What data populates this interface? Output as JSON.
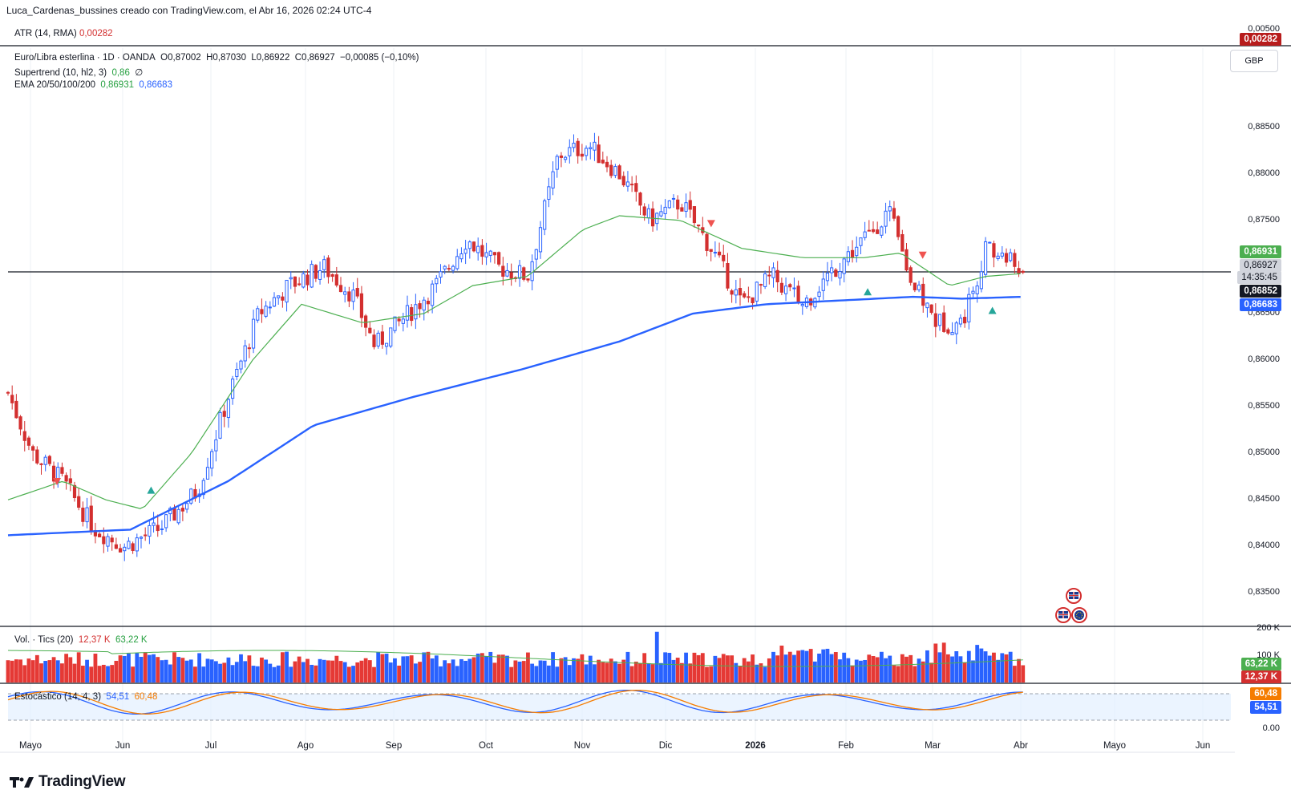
{
  "header": {
    "title": "Luca_Cardenas_bussines creado con TradingView.com, el Abr 16, 2026 02:24 UTC-4"
  },
  "atr": {
    "label": "ATR (14, RMA)",
    "value": "0,00282",
    "axis_top": "0,00500",
    "tag": "0,00282"
  },
  "instrument": {
    "name": "Euro/Libra esterlina · 1D · OANDA",
    "o": "0,87002",
    "h": "0,87030",
    "l": "0,86922",
    "c": "0,86927",
    "change": "−0,00085 (−0,10%)"
  },
  "supertrend": {
    "label": "Supertrend (10, hl2, 3)",
    "value": "0,86",
    "extra": "∅"
  },
  "ema": {
    "label": "EMA 20/50/100/200",
    "v1": "0,86931",
    "v2": "0,86683"
  },
  "currency_button": "GBP",
  "price_tags": {
    "ema_green": "0,86931",
    "last": "0,86927",
    "countdown": "14:35:45",
    "line": "0,86852",
    "ema_blue": "0,86683"
  },
  "volume": {
    "label": "Vol. · Tics (20)",
    "v1": "12,37 K",
    "v2": "63,22 K",
    "axis_top": "200 K",
    "axis_mid": "100 K",
    "tag1": "63,22 K",
    "tag2": "12,37 K"
  },
  "stoch": {
    "label": "Estocástico (14, 4, 3)",
    "v1": "54,51",
    "v2": "60,48",
    "axis_zero": "0.00",
    "tag1": "60,48",
    "tag2": "54,51"
  },
  "colors": {
    "up": "#2962ff",
    "down": "#d32f2f",
    "ema20": "#4caf50",
    "ema200": "#2962ff",
    "stoch_k": "#2962ff",
    "stoch_d": "#f57c00"
  },
  "brand": "TradingView",
  "chart_data": {
    "type": "line",
    "y_ticks": [
      "0,83500",
      "0,84000",
      "0,84500",
      "0,85000",
      "0,85500",
      "0,86000",
      "0,86500",
      "0,87000",
      "0,87500",
      "0,88000",
      "0,88500"
    ],
    "ylim": [
      0.8315,
      0.8935
    ],
    "x_ticks": [
      "Mayo",
      "Jun",
      "Jul",
      "Ago",
      "Sep",
      "Oct",
      "Nov",
      "Dic",
      "2026",
      "Feb",
      "Mar",
      "Abr",
      "Mayo",
      "Jun"
    ],
    "anchors_close": [
      {
        "x": 0.0,
        "y": 0.8565
      },
      {
        "x": 0.02,
        "y": 0.85
      },
      {
        "x": 0.045,
        "y": 0.847
      },
      {
        "x": 0.07,
        "y": 0.842
      },
      {
        "x": 0.095,
        "y": 0.84
      },
      {
        "x": 0.125,
        "y": 0.842
      },
      {
        "x": 0.155,
        "y": 0.846
      },
      {
        "x": 0.18,
        "y": 0.856
      },
      {
        "x": 0.205,
        "y": 0.865
      },
      {
        "x": 0.23,
        "y": 0.868
      },
      {
        "x": 0.258,
        "y": 0.87
      },
      {
        "x": 0.282,
        "y": 0.867
      },
      {
        "x": 0.3,
        "y": 0.8615
      },
      {
        "x": 0.32,
        "y": 0.864
      },
      {
        "x": 0.35,
        "y": 0.868
      },
      {
        "x": 0.375,
        "y": 0.873
      },
      {
        "x": 0.4,
        "y": 0.87
      },
      {
        "x": 0.425,
        "y": 0.869
      },
      {
        "x": 0.45,
        "y": 0.882
      },
      {
        "x": 0.475,
        "y": 0.883
      },
      {
        "x": 0.5,
        "y": 0.88
      },
      {
        "x": 0.525,
        "y": 0.875
      },
      {
        "x": 0.55,
        "y": 0.877
      },
      {
        "x": 0.575,
        "y": 0.872
      },
      {
        "x": 0.6,
        "y": 0.866
      },
      {
        "x": 0.625,
        "y": 0.869
      },
      {
        "x": 0.65,
        "y": 0.866
      },
      {
        "x": 0.67,
        "y": 0.869
      },
      {
        "x": 0.7,
        "y": 0.873
      },
      {
        "x": 0.72,
        "y": 0.876
      },
      {
        "x": 0.74,
        "y": 0.868
      },
      {
        "x": 0.76,
        "y": 0.864
      },
      {
        "x": 0.78,
        "y": 0.864
      },
      {
        "x": 0.8,
        "y": 0.872
      },
      {
        "x": 0.815,
        "y": 0.871
      },
      {
        "x": 0.83,
        "y": 0.8693
      }
    ],
    "ema20": [
      {
        "x": 0.0,
        "y": 0.845
      },
      {
        "x": 0.045,
        "y": 0.847
      },
      {
        "x": 0.08,
        "y": 0.845
      },
      {
        "x": 0.11,
        "y": 0.844
      },
      {
        "x": 0.15,
        "y": 0.85
      },
      {
        "x": 0.2,
        "y": 0.86
      },
      {
        "x": 0.24,
        "y": 0.866
      },
      {
        "x": 0.29,
        "y": 0.864
      },
      {
        "x": 0.34,
        "y": 0.865
      },
      {
        "x": 0.38,
        "y": 0.868
      },
      {
        "x": 0.425,
        "y": 0.869
      },
      {
        "x": 0.47,
        "y": 0.874
      },
      {
        "x": 0.5,
        "y": 0.8755
      },
      {
        "x": 0.55,
        "y": 0.875
      },
      {
        "x": 0.6,
        "y": 0.872
      },
      {
        "x": 0.65,
        "y": 0.871
      },
      {
        "x": 0.7,
        "y": 0.871
      },
      {
        "x": 0.73,
        "y": 0.8715
      },
      {
        "x": 0.77,
        "y": 0.868
      },
      {
        "x": 0.8,
        "y": 0.869
      },
      {
        "x": 0.83,
        "y": 0.8693
      }
    ],
    "ema200": [
      {
        "x": 0.0,
        "y": 0.8412
      },
      {
        "x": 0.1,
        "y": 0.8418
      },
      {
        "x": 0.18,
        "y": 0.847
      },
      {
        "x": 0.25,
        "y": 0.853
      },
      {
        "x": 0.33,
        "y": 0.856
      },
      {
        "x": 0.42,
        "y": 0.859
      },
      {
        "x": 0.5,
        "y": 0.862
      },
      {
        "x": 0.56,
        "y": 0.865
      },
      {
        "x": 0.62,
        "y": 0.866
      },
      {
        "x": 0.68,
        "y": 0.8664
      },
      {
        "x": 0.74,
        "y": 0.8668
      },
      {
        "x": 0.78,
        "y": 0.8666
      },
      {
        "x": 0.83,
        "y": 0.8668
      }
    ]
  }
}
